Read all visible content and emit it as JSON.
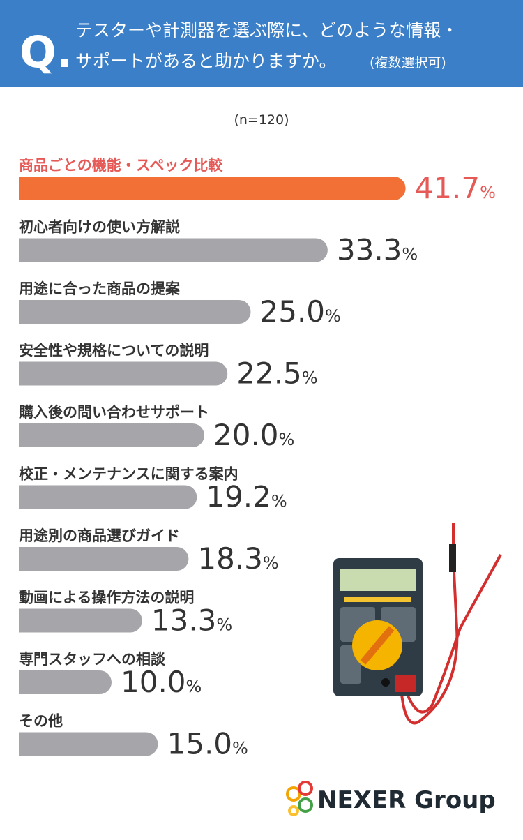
{
  "header": {
    "q_mark": "Q.",
    "question_line1": "テスターや計測器を選ぶ際に、どのような情報・",
    "question_line2": "サポートがあると助かりますか。",
    "question_note": "(複数選択可)"
  },
  "chart_data": {
    "type": "bar",
    "orientation": "horizontal",
    "subtitle": "(n=120)",
    "categories": [
      "商品ごとの機能・スペック比較",
      "初心者向けの使い方解説",
      "用途に合った商品の提案",
      "安全性や規格についての説明",
      "購入後の問い合わせサポート",
      "校正・メンテナンスに関する案内",
      "用途別の商品選びガイド",
      "動画による操作方法の説明",
      "専門スタッフへの相談",
      "その他"
    ],
    "values": [
      41.7,
      33.3,
      25.0,
      22.5,
      20.0,
      19.2,
      18.3,
      13.3,
      10.0,
      15.0
    ],
    "value_labels": [
      "41.7%",
      "33.3%",
      "25.0%",
      "22.5%",
      "20.0%",
      "19.2%",
      "18.3%",
      "13.3%",
      "10.0%",
      "15.0%"
    ],
    "colors": [
      "#f26f35",
      "#a6a6aa",
      "#a6a6aa",
      "#a6a6aa",
      "#a6a6aa",
      "#a6a6aa",
      "#a6a6aa",
      "#a6a6aa",
      "#a6a6aa",
      "#a6a6aa"
    ],
    "label_colors": [
      "#e55a57",
      "#333333",
      "#333333",
      "#333333",
      "#333333",
      "#333333",
      "#333333",
      "#333333",
      "#333333",
      "#333333"
    ]
  },
  "footer": {
    "logo": "NEXER Group"
  }
}
